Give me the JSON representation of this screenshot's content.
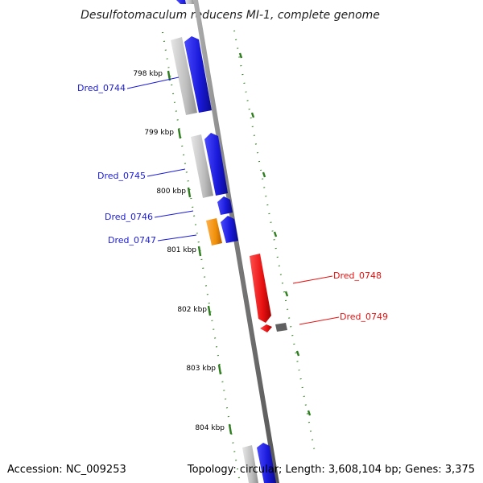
{
  "title": "Desulfotomaculum reducens MI-1, complete genome",
  "ticks": [
    "798 kbp",
    "799 kbp",
    "800 kbp",
    "801 kbp",
    "802 kbp",
    "803 kbp",
    "804 kbp"
  ],
  "genes": [
    {
      "id": "Dred_0744",
      "strand": "forward",
      "color": "#1a1adb"
    },
    {
      "id": "Dred_0745",
      "strand": "forward",
      "color": "#1a1adb"
    },
    {
      "id": "Dred_0746",
      "strand": "forward",
      "color": "#1a1adb"
    },
    {
      "id": "Dred_0747",
      "strand": "forward",
      "color": "#1a1adb"
    },
    {
      "id": "Dred_0748",
      "strand": "reverse",
      "color": "#e81010"
    },
    {
      "id": "Dred_0749",
      "strand": "reverse",
      "color": "#e81010"
    }
  ],
  "footer": {
    "accession": "Accession: NC_009253",
    "topology": "Topology: circular; Length: 3,608,104 bp; Genes: 3,375"
  },
  "colors": {
    "forward_cds": "#1a1adb",
    "reverse_cds": "#e81010",
    "gene_backing": "#bdbdbd",
    "orange_feature": "#f0900a",
    "dark_feature": "#606060",
    "backbone": "#8a8a8a",
    "dots": "#2e7d1e"
  }
}
